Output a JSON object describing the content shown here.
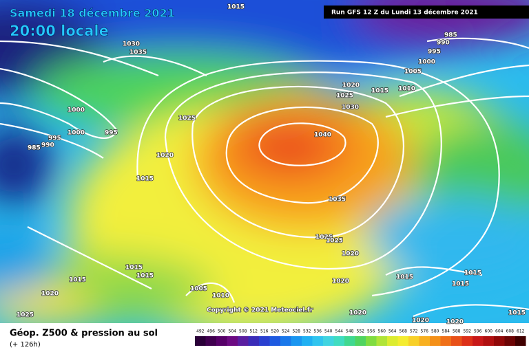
{
  "header": {
    "date": "Samedi 18 décembre 2021",
    "time": "20:00 locale",
    "run": "Run GFS 12 Z du Lundi 13 décembre 2021"
  },
  "isobar_labels": [
    1015,
    1030,
    1035,
    985,
    990,
    995,
    1000,
    1005,
    1010,
    1015,
    1020,
    1025,
    1030,
    1040,
    1035,
    1025,
    1020,
    1015,
    995,
    995,
    990,
    985,
    1000,
    1000,
    1025,
    1025,
    1020,
    1020,
    1020,
    1015,
    1015,
    1015,
    1020,
    1025,
    1005,
    1010,
    1015,
    1015,
    1015,
    1020,
    1020,
    1015
  ],
  "copyright": "Copyright © 2021 Meteociel.fr",
  "legend": {
    "title": "Géop. Z500 & pression au sol",
    "lead_time": "(+ 126h)",
    "scale": [
      492,
      496,
      500,
      504,
      508,
      512,
      516,
      520,
      524,
      528,
      532,
      536,
      540,
      544,
      548,
      552,
      556,
      560,
      564,
      568,
      572,
      576,
      580,
      584,
      588,
      592,
      596,
      600,
      604,
      608,
      612
    ]
  }
}
